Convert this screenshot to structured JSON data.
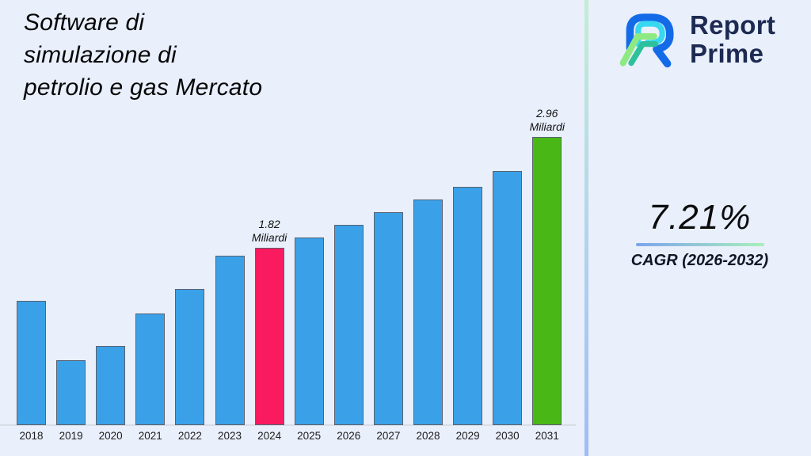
{
  "title": {
    "lines": [
      "Software di",
      "simulazione di",
      "petrolio e gas Mercato"
    ]
  },
  "logo": {
    "line1": "Report",
    "line2": "Prime"
  },
  "cagr": {
    "value": "7.21%",
    "label": "CAGR (2026-2032)"
  },
  "chart_data": {
    "type": "bar",
    "title": "Software di simulazione di petrolio e gas Mercato",
    "unit": "Miliardi",
    "categories": [
      "2018",
      "2019",
      "2020",
      "2021",
      "2022",
      "2023",
      "2024",
      "2025",
      "2026",
      "2027",
      "2028",
      "2029",
      "2030",
      "2031"
    ],
    "values": [
      1.28,
      0.67,
      0.81,
      1.15,
      1.4,
      1.74,
      1.82,
      1.93,
      2.06,
      2.19,
      2.32,
      2.45,
      2.61,
      2.96
    ],
    "bar_color_default": "#3aa1e8",
    "bar_color_highlights": {
      "2024": "#f91a5f",
      "2031": "#49b816"
    },
    "annotations": [
      {
        "category": "2024",
        "lines": [
          "1.82",
          "Miliardi"
        ]
      },
      {
        "category": "2031",
        "lines": [
          "2.96",
          "Miliardi"
        ]
      }
    ],
    "xlabel": "",
    "ylabel": "",
    "ylim": [
      0,
      3.2
    ],
    "grid": false,
    "legend": false,
    "y_axis_visible": false
  },
  "colors": {
    "background": "#e9effb",
    "axis_line": "#d9dde6",
    "divider_top": "#c2eed3",
    "divider_bottom": "#9fbcf5",
    "underline_left": "#7da4ed",
    "underline_right": "#a9f0bb",
    "logo_navy": "#1d2a52",
    "logo_blue": "#146be8",
    "logo_cyan": "#38d8f0",
    "logo_green": "#8fe983",
    "logo_teal": "#2cc19c"
  }
}
